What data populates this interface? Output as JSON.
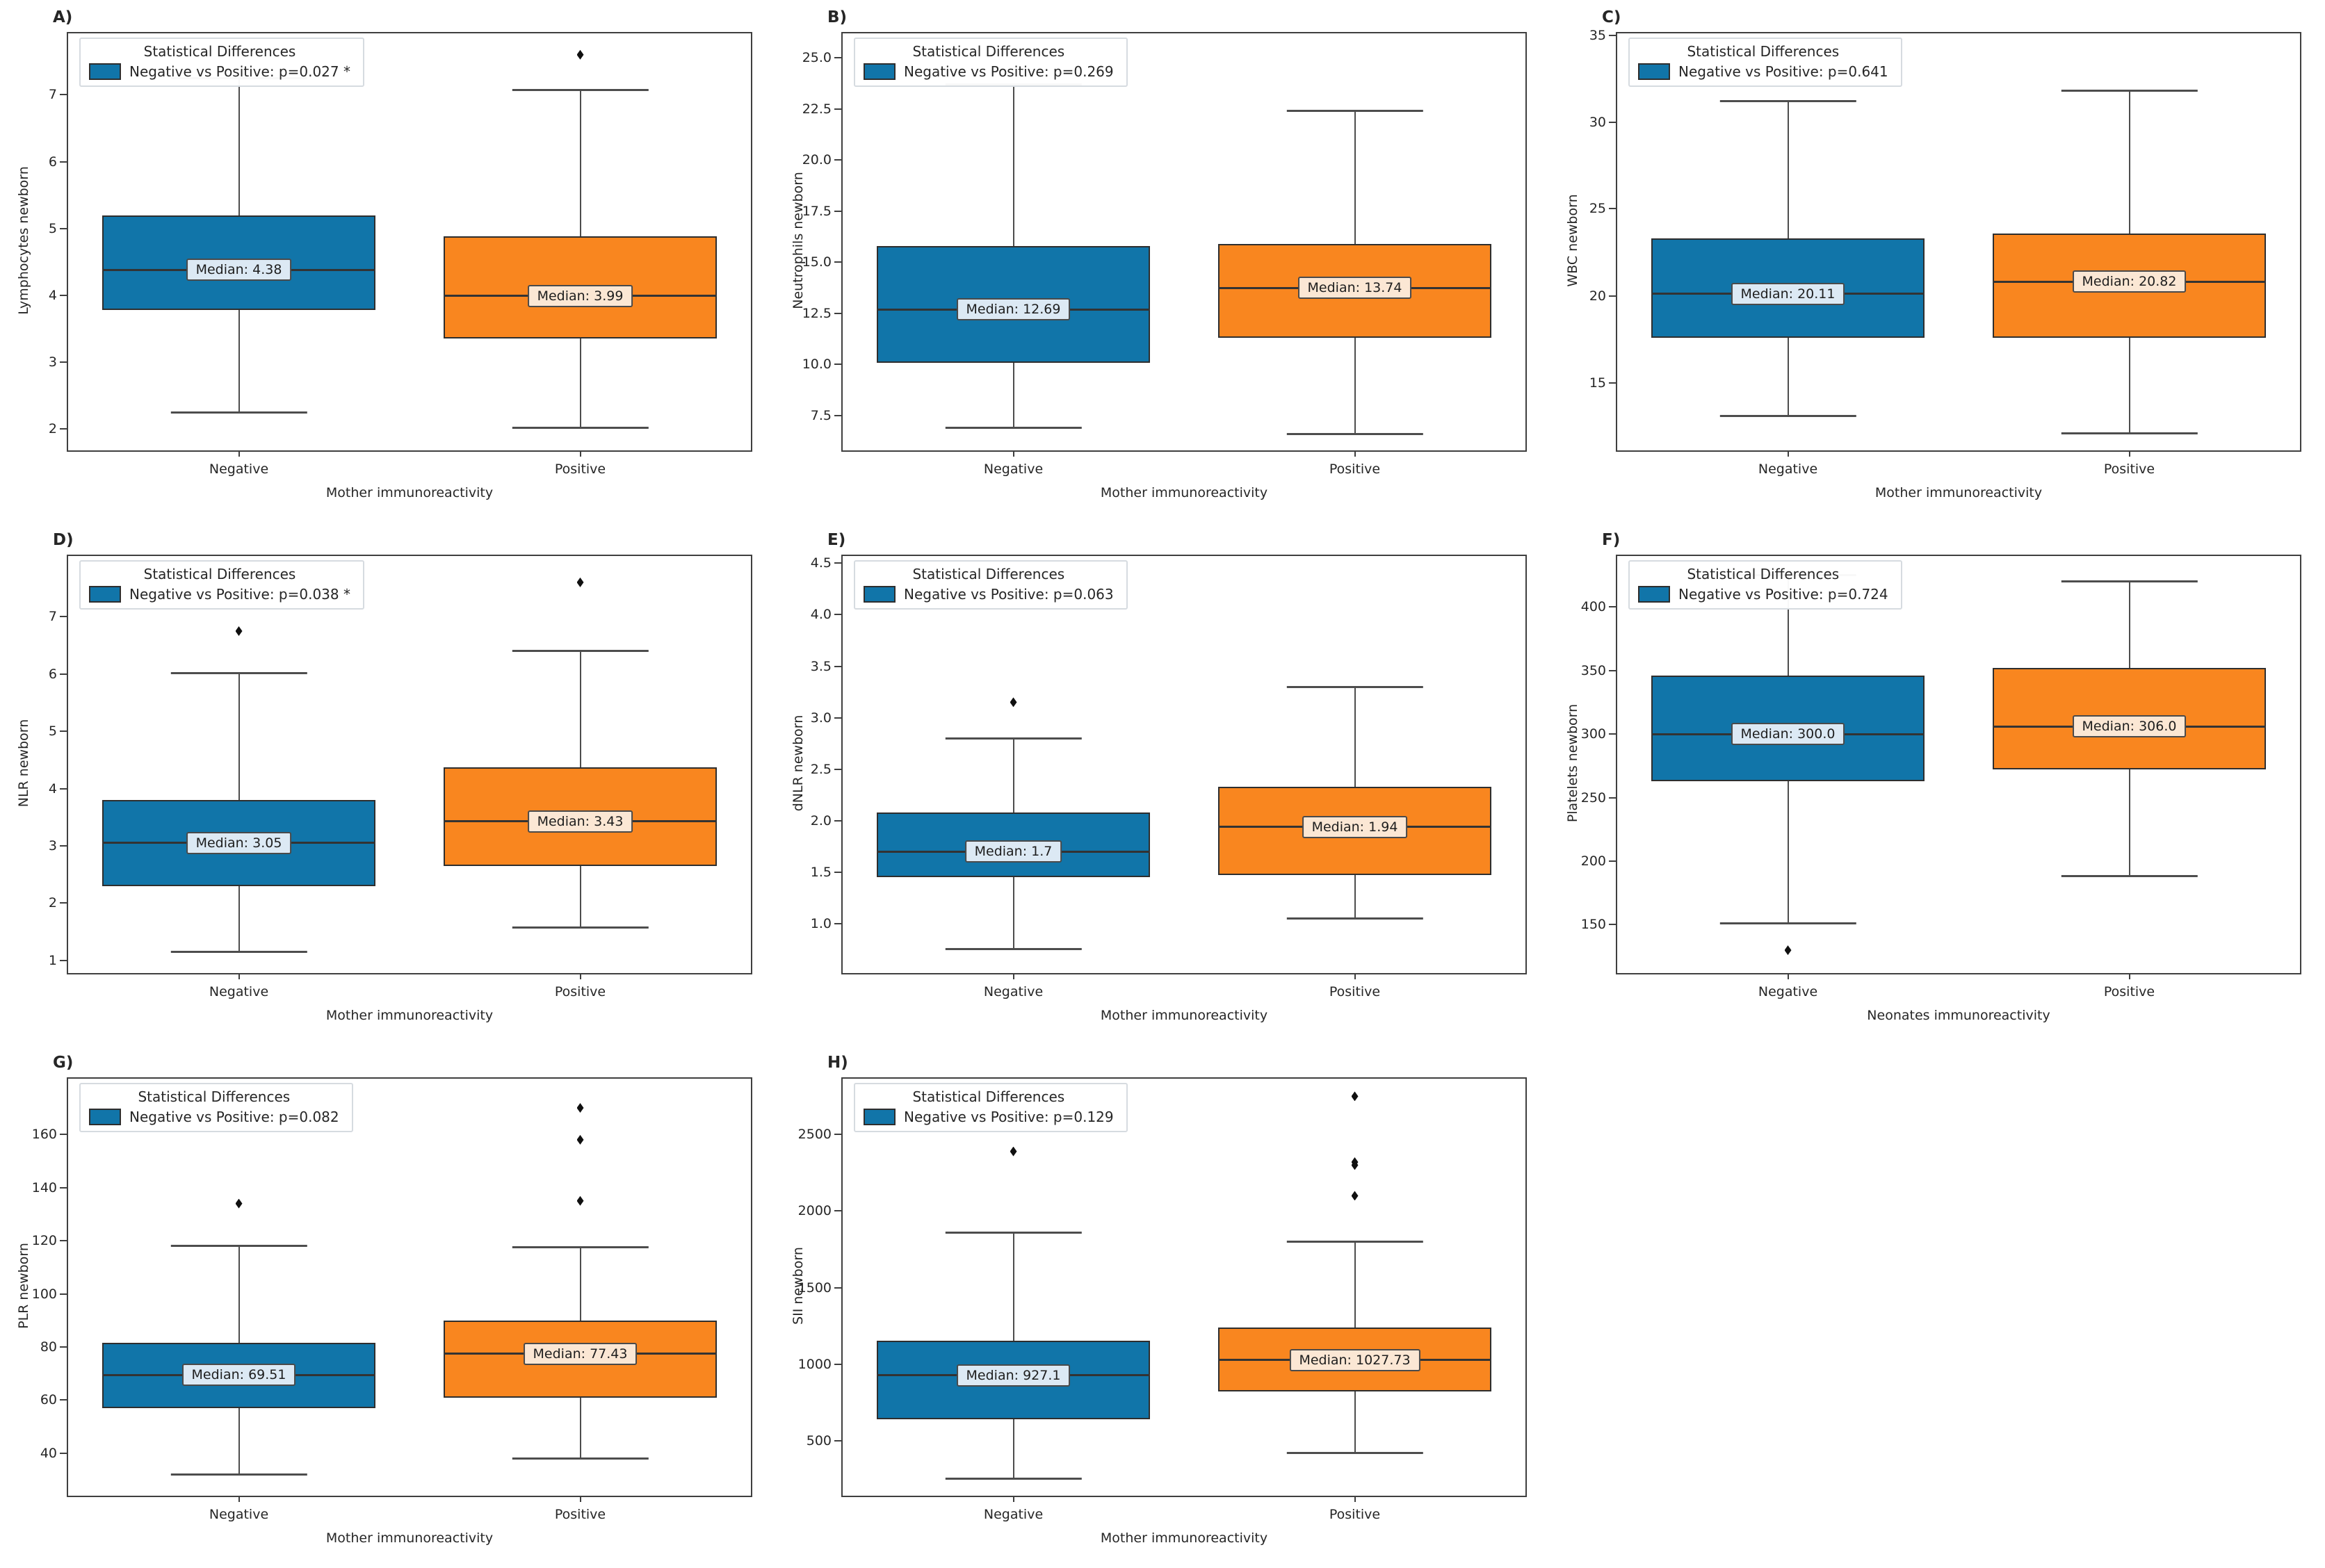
{
  "figure": {
    "legend_title": "Statistical Differences",
    "x_categories": [
      "Negative",
      "Positive"
    ]
  },
  "colors": {
    "negative_box": "#1175a9",
    "positive_box": "#f9861f",
    "negative_label_bg": "#dce9f4",
    "positive_label_bg": "#fbe7d4",
    "box_edge": "#2e2e2e",
    "whisker": "#4d4d4d",
    "outlier": "#101010",
    "frame": "#3f3f3f"
  },
  "chart_data": [
    {
      "type": "box",
      "id": "A",
      "panel_label": "A)",
      "ylabel": "Lymphocytes newborn",
      "xlabel": "Mother immunoreactivity",
      "legend_title": "Statistical Differences",
      "legend_entry": "Negative vs Positive: p=0.027 *",
      "ylim": [
        1.68,
        7.92
      ],
      "ytick_labels": [
        "2",
        "3",
        "4",
        "5",
        "6",
        "7"
      ],
      "groups": [
        {
          "name": "Negative",
          "color_key": "negative",
          "median_label": "Median: 4.38",
          "whisker_low": 2.25,
          "q1": 3.78,
          "median": 4.38,
          "q3": 5.2,
          "whisker_high": 7.25,
          "outliers": []
        },
        {
          "name": "Positive",
          "color_key": "positive",
          "median_label": "Median: 3.99",
          "whisker_low": 2.02,
          "q1": 3.35,
          "median": 3.99,
          "q3": 4.88,
          "whisker_high": 7.07,
          "outliers": [
            7.6
          ]
        }
      ]
    },
    {
      "type": "box",
      "id": "B",
      "panel_label": "B)",
      "ylabel": "Neutrophils newborn",
      "xlabel": "Mother immunoreactivity",
      "legend_title": "Statistical Differences",
      "legend_entry": "Negative vs Positive: p=0.269",
      "ylim": [
        5.8,
        26.2
      ],
      "ytick_labels": [
        "7.5",
        "10.0",
        "12.5",
        "15.0",
        "17.5",
        "20.0",
        "22.5",
        "25.0"
      ],
      "groups": [
        {
          "name": "Negative",
          "color_key": "negative",
          "median_label": "Median: 12.69",
          "whisker_low": 6.9,
          "q1": 10.1,
          "median": 12.69,
          "q3": 15.8,
          "whisker_high": 23.7,
          "outliers": []
        },
        {
          "name": "Positive",
          "color_key": "positive",
          "median_label": "Median: 13.74",
          "whisker_low": 6.6,
          "q1": 11.3,
          "median": 13.74,
          "q3": 15.9,
          "whisker_high": 22.4,
          "outliers": []
        }
      ]
    },
    {
      "type": "box",
      "id": "C",
      "panel_label": "C)",
      "ylabel": "WBC newborn",
      "xlabel": "Mother immunoreactivity",
      "legend_title": "Statistical Differences",
      "legend_entry": "Negative vs Positive: p=0.641",
      "ylim": [
        11.1,
        35.1
      ],
      "ytick_labels": [
        "15",
        "20",
        "25",
        "30",
        "35"
      ],
      "groups": [
        {
          "name": "Negative",
          "color_key": "negative",
          "median_label": "Median: 20.11",
          "whisker_low": 13.1,
          "q1": 17.6,
          "median": 20.11,
          "q3": 23.3,
          "whisker_high": 31.2,
          "outliers": []
        },
        {
          "name": "Positive",
          "color_key": "positive",
          "median_label": "Median: 20.82",
          "whisker_low": 12.1,
          "q1": 17.6,
          "median": 20.82,
          "q3": 23.6,
          "whisker_high": 31.8,
          "outliers": []
        }
      ]
    },
    {
      "type": "box",
      "id": "D",
      "panel_label": "D)",
      "ylabel": "NLR newborn",
      "xlabel": "Mother immunoreactivity",
      "legend_title": "Statistical Differences",
      "legend_entry": "Negative vs Positive: p=0.038 *",
      "ylim": [
        0.78,
        8.06
      ],
      "ytick_labels": [
        "1",
        "2",
        "3",
        "4",
        "5",
        "6",
        "7"
      ],
      "groups": [
        {
          "name": "Negative",
          "color_key": "negative",
          "median_label": "Median: 3.05",
          "whisker_low": 1.15,
          "q1": 2.3,
          "median": 3.05,
          "q3": 3.8,
          "whisker_high": 6.02,
          "outliers": [
            6.75
          ]
        },
        {
          "name": "Positive",
          "color_key": "positive",
          "median_label": "Median: 3.43",
          "whisker_low": 1.58,
          "q1": 2.65,
          "median": 3.43,
          "q3": 4.37,
          "whisker_high": 6.4,
          "outliers": [
            7.6
          ]
        }
      ]
    },
    {
      "type": "box",
      "id": "E",
      "panel_label": "E)",
      "ylabel": "dNLR newborn",
      "xlabel": "Mother immunoreactivity",
      "legend_title": "Statistical Differences",
      "legend_entry": "Negative vs Positive: p=0.063",
      "ylim": [
        0.52,
        4.57
      ],
      "ytick_labels": [
        "1.0",
        "1.5",
        "2.0",
        "2.5",
        "3.0",
        "3.5",
        "4.0",
        "4.5"
      ],
      "groups": [
        {
          "name": "Negative",
          "color_key": "negative",
          "median_label": "Median: 1.7",
          "whisker_low": 0.75,
          "q1": 1.45,
          "median": 1.7,
          "q3": 2.08,
          "whisker_high": 2.8,
          "outliers": [
            3.15
          ]
        },
        {
          "name": "Positive",
          "color_key": "positive",
          "median_label": "Median: 1.94",
          "whisker_low": 1.05,
          "q1": 1.47,
          "median": 1.94,
          "q3": 2.33,
          "whisker_high": 3.3,
          "outliers": []
        }
      ]
    },
    {
      "type": "box",
      "id": "F",
      "panel_label": "F)",
      "ylabel": "Platelets newborn",
      "xlabel": "Neonates immunoreactivity",
      "legend_title": "Statistical Differences",
      "legend_entry": "Negative vs Positive: p=0.724",
      "ylim": [
        112,
        440
      ],
      "ytick_labels": [
        "150",
        "200",
        "250",
        "300",
        "350",
        "400"
      ],
      "groups": [
        {
          "name": "Negative",
          "color_key": "negative",
          "median_label": "Median: 300.0",
          "whisker_low": 151,
          "q1": 263,
          "median": 300.0,
          "q3": 346,
          "whisker_high": 425,
          "outliers": [
            130
          ]
        },
        {
          "name": "Positive",
          "color_key": "positive",
          "median_label": "Median: 306.0",
          "whisker_low": 188,
          "q1": 272,
          "median": 306.0,
          "q3": 352,
          "whisker_high": 420,
          "outliers": []
        }
      ]
    },
    {
      "type": "box",
      "id": "G",
      "panel_label": "G)",
      "ylabel": "PLR newborn",
      "xlabel": "Mother immunoreactivity",
      "legend_title": "Statistical Differences",
      "legend_entry": "Negative vs Positive: p=0.082",
      "ylim": [
        24,
        181
      ],
      "ytick_labels": [
        "40",
        "60",
        "80",
        "100",
        "120",
        "140",
        "160"
      ],
      "groups": [
        {
          "name": "Negative",
          "color_key": "negative",
          "median_label": "Median: 69.51",
          "whisker_low": 32,
          "q1": 57,
          "median": 69.51,
          "q3": 81.5,
          "whisker_high": 118,
          "outliers": [
            134
          ]
        },
        {
          "name": "Positive",
          "color_key": "positive",
          "median_label": "Median: 77.43",
          "whisker_low": 38,
          "q1": 61,
          "median": 77.43,
          "q3": 90,
          "whisker_high": 117.5,
          "outliers": [
            135,
            158,
            170
          ]
        }
      ]
    },
    {
      "type": "box",
      "id": "H",
      "panel_label": "H)",
      "ylabel": "SII newborn",
      "xlabel": "Mother immunoreactivity",
      "legend_title": "Statistical Differences",
      "legend_entry": "Negative vs Positive: p=0.129",
      "ylim": [
        140,
        2865
      ],
      "ytick_labels": [
        "500",
        "1000",
        "1500",
        "2000",
        "2500"
      ],
      "groups": [
        {
          "name": "Negative",
          "color_key": "negative",
          "median_label": "Median: 927.1",
          "whisker_low": 250,
          "q1": 640,
          "median": 927.1,
          "q3": 1155,
          "whisker_high": 1860,
          "outliers": [
            2390
          ]
        },
        {
          "name": "Positive",
          "color_key": "positive",
          "median_label": "Median: 1027.73",
          "whisker_low": 420,
          "q1": 820,
          "median": 1027.73,
          "q3": 1240,
          "whisker_high": 1800,
          "outliers": [
            2100,
            2300,
            2320,
            2750
          ]
        }
      ]
    }
  ]
}
